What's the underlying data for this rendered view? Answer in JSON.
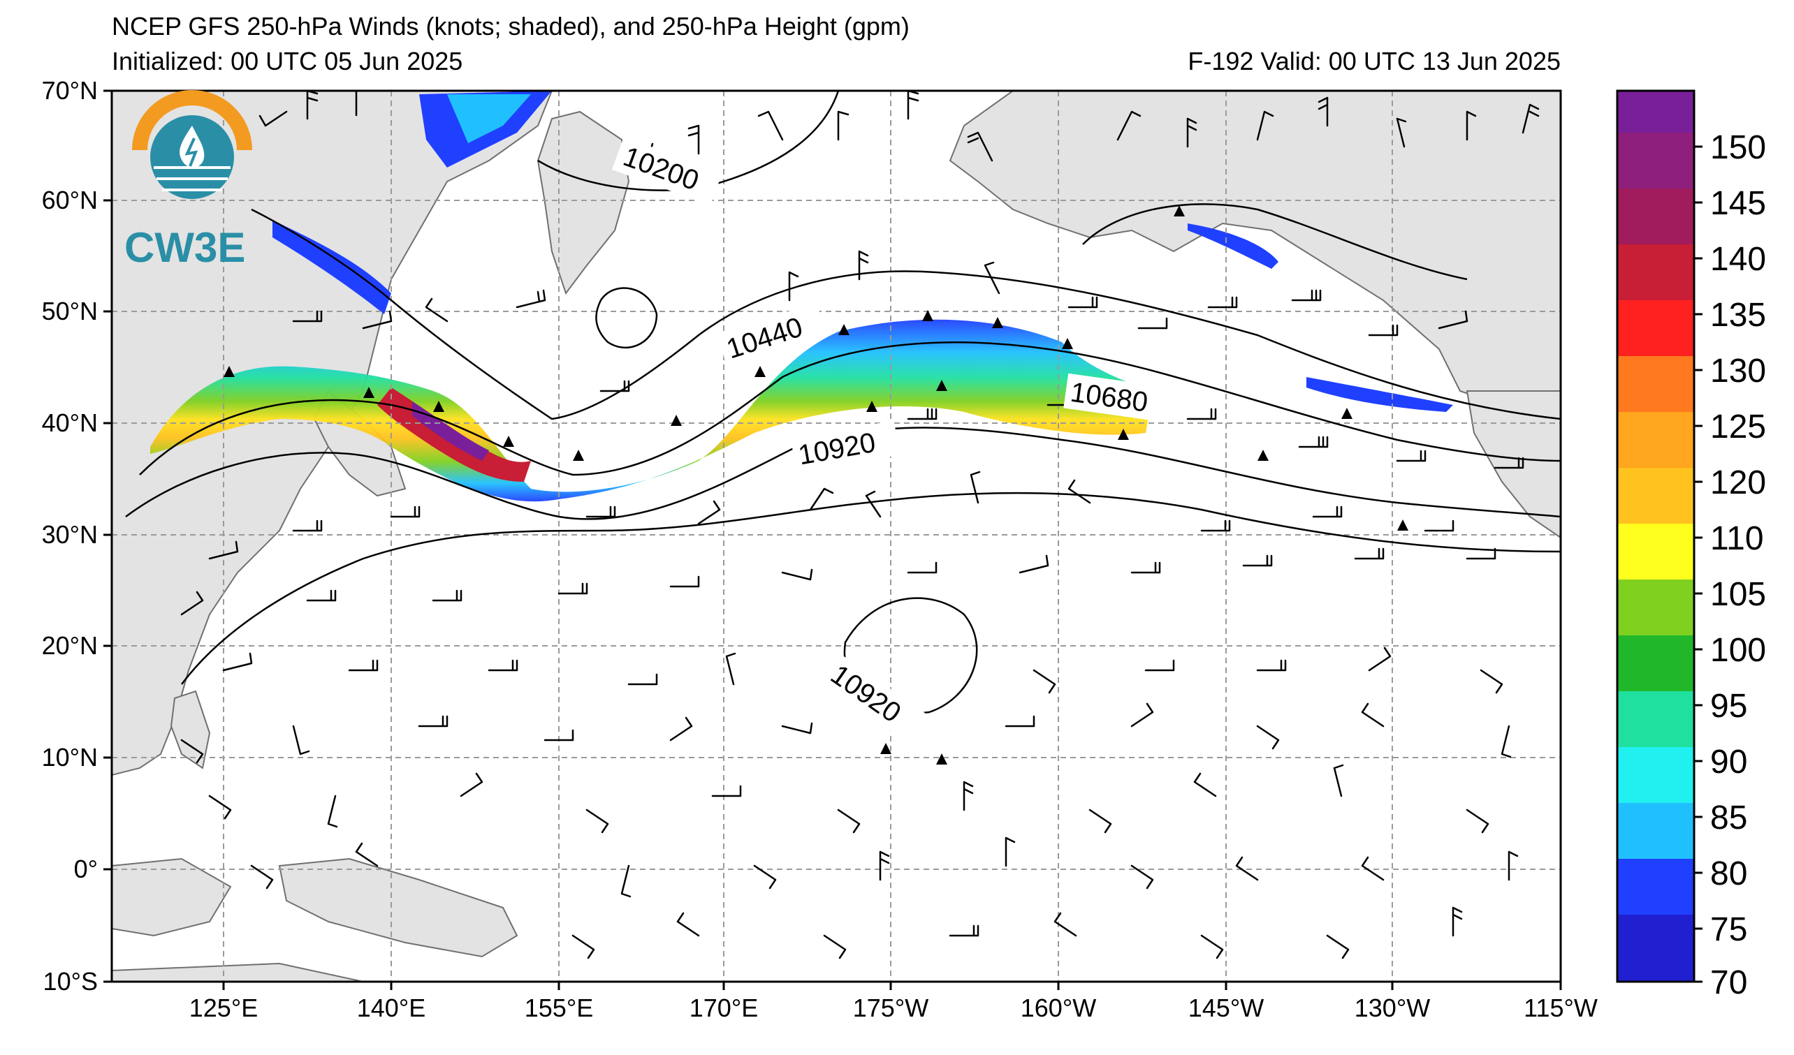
{
  "header": {
    "title": "NCEP GFS 250-hPa Winds (knots; shaded), and 250-hPa Height (gpm)",
    "initialized": "Initialized: 00 UTC 05 Jun 2025",
    "valid": "F-192  Valid: 00 UTC 13 Jun 2025"
  },
  "logo": {
    "text": "CW3E",
    "colors": {
      "orange": "#f39a21",
      "teal": "#2a8fa6"
    }
  },
  "axes": {
    "lat_labels": [
      "70°N",
      "60°N",
      "50°N",
      "40°N",
      "30°N",
      "20°N",
      "10°N",
      "0°",
      "10°S"
    ],
    "lon_labels": [
      "125°E",
      "140°E",
      "155°E",
      "170°E",
      "175°W",
      "160°W",
      "145°W",
      "130°W",
      "115°W"
    ]
  },
  "contours": {
    "labels": [
      "10200",
      "10440",
      "10680",
      "10920",
      "10920"
    ]
  },
  "colorbar": {
    "ticks": [
      "150",
      "145",
      "140",
      "135",
      "130",
      "125",
      "120",
      "110",
      "105",
      "100",
      "95",
      "90",
      "85",
      "80",
      "75",
      "70"
    ],
    "colors": [
      "#7a1f9a",
      "#8e1f7c",
      "#a01c5c",
      "#c81e36",
      "#ff2020",
      "#ff7a1e",
      "#ffa51e",
      "#ffc21e",
      "#ffe21e",
      "#ffff1e",
      "#80d020",
      "#20b82a",
      "#20e0a0",
      "#20f0f0",
      "#20c0ff",
      "#2040ff",
      "#2020d0"
    ]
  },
  "style": {
    "land": "#e3e3e3",
    "coast": "#707070",
    "grid": "#9a9a9a"
  }
}
